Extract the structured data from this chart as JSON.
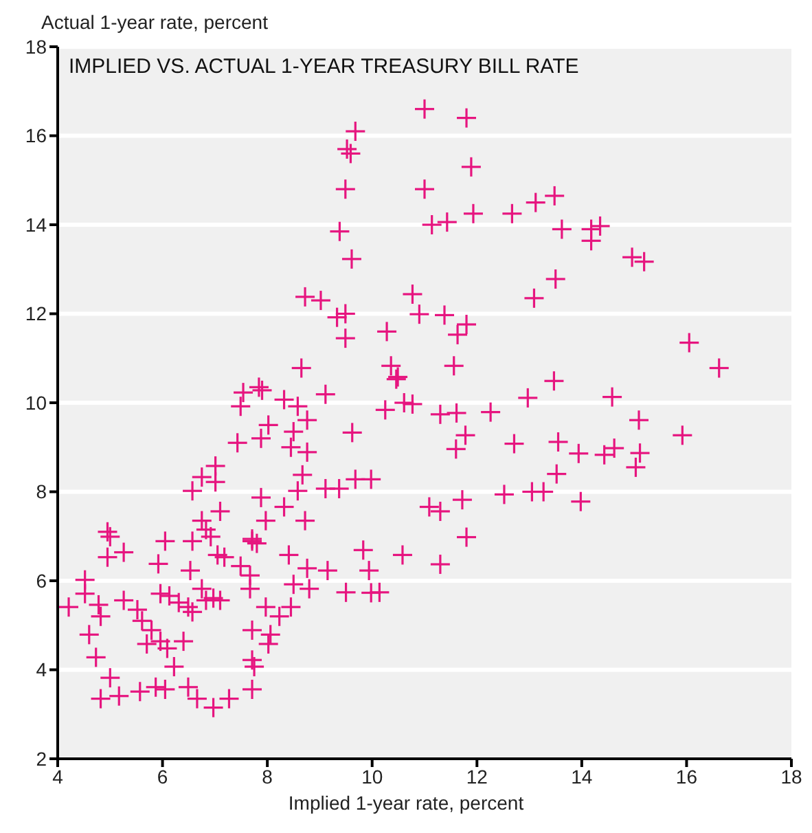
{
  "chart_data": {
    "type": "scatter",
    "title": "IMPLIED VS. ACTUAL 1-YEAR TREASURY BILL RATE",
    "xlabel": "Implied 1-year rate, percent",
    "ylabel": "Actual 1-year rate, percent",
    "xlim": [
      4,
      18
    ],
    "ylim": [
      2,
      18
    ],
    "xticks": [
      4,
      6,
      8,
      10,
      12,
      14,
      16,
      18
    ],
    "yticks": [
      2,
      4,
      6,
      8,
      10,
      12,
      14,
      16,
      18
    ],
    "grid": "y",
    "marker": "cross",
    "series": [
      {
        "color": "#e6157f",
        "x": [
          11.0,
          11.8,
          9.68,
          9.52,
          9.59,
          11.89,
          9.49,
          11.0,
          13.48,
          13.12,
          12.67,
          11.93,
          11.43,
          11.14,
          9.38,
          13.62,
          14.35,
          14.18,
          14.18,
          9.61,
          14.96,
          15.19,
          13.5,
          13.09,
          8.72,
          9.02,
          10.77,
          9.49,
          9.33,
          10.9,
          11.38,
          11.8,
          11.63,
          10.28,
          9.49,
          16.05,
          16.62,
          8.65,
          10.36,
          10.49,
          11.56,
          13.47,
          12.97,
          14.58,
          10.77,
          11.3,
          11.61,
          12.26,
          15.09,
          11.78,
          11.6,
          12.71,
          13.55,
          15.92,
          13.94,
          14.43,
          14.62,
          15.11,
          15.03,
          13.52,
          12.52,
          13.05,
          13.27,
          13.98,
          11.09,
          11.3,
          11.72,
          11.8,
          11.3,
          7.9,
          7.54,
          8.32,
          8.58,
          9.11,
          10.46,
          10.25,
          10.61,
          8.02,
          8.5,
          8.76,
          7.88,
          9.62,
          8.45,
          8.76,
          7.43,
          8.67,
          9.11,
          9.37,
          9.68,
          9.98,
          8.58,
          7.88,
          8.32,
          8.72,
          7.97,
          7.71,
          8.41,
          9.83,
          10.58,
          7.49,
          8.76,
          9.15,
          9.94,
          7.67,
          8.5,
          8.8,
          9.5,
          9.98,
          10.14,
          7.97,
          8.23,
          8.45,
          7.71,
          8.06,
          8.02,
          7.71,
          7.75,
          7.71,
          7.84,
          7.49,
          7.01,
          6.75,
          6.57,
          7.01,
          7.1,
          6.75,
          6.83,
          6.57,
          6.92,
          7.05,
          7.18,
          7.71,
          7.8,
          4.95,
          5.0,
          4.95,
          5.26,
          6.05,
          5.92,
          6.53,
          7.67,
          4.52,
          4.52,
          4.21,
          4.78,
          4.82,
          5.26,
          5.52,
          5.96,
          6.13,
          6.31,
          6.49,
          6.75,
          6.83,
          6.97,
          7.1,
          6.57,
          4.6,
          4.73,
          5.61,
          5.79,
          5.7,
          5.96,
          6.09,
          6.4,
          6.22,
          5.0,
          4.82,
          5.17,
          5.57,
          5.87,
          6.05,
          6.49,
          6.66,
          6.97,
          7.27
        ],
        "values": [
          16.6,
          16.4,
          16.1,
          15.7,
          15.6,
          15.3,
          14.8,
          14.8,
          14.65,
          14.5,
          14.25,
          14.25,
          14.06,
          14.0,
          13.85,
          13.9,
          13.97,
          13.9,
          13.64,
          13.23,
          13.27,
          13.17,
          12.78,
          12.35,
          12.38,
          12.3,
          12.44,
          12.0,
          11.92,
          11.99,
          11.97,
          11.76,
          11.53,
          11.6,
          11.45,
          11.35,
          10.78,
          10.78,
          10.83,
          10.58,
          10.83,
          10.49,
          10.11,
          10.13,
          9.97,
          9.74,
          9.77,
          9.79,
          9.61,
          9.27,
          8.96,
          9.08,
          9.12,
          9.27,
          8.86,
          8.83,
          8.98,
          8.87,
          8.55,
          8.4,
          7.94,
          8.0,
          8.0,
          7.78,
          7.66,
          7.56,
          7.82,
          6.98,
          6.37,
          10.28,
          10.23,
          10.07,
          9.92,
          10.19,
          10.53,
          9.84,
          10.0,
          9.5,
          9.35,
          9.61,
          9.2,
          9.33,
          9.0,
          8.89,
          9.1,
          8.38,
          8.07,
          8.07,
          8.28,
          8.28,
          8.02,
          7.87,
          7.66,
          7.35,
          7.35,
          6.89,
          6.58,
          6.69,
          6.58,
          6.33,
          6.28,
          6.23,
          6.23,
          5.82,
          5.92,
          5.82,
          5.74,
          5.73,
          5.74,
          5.41,
          5.2,
          5.41,
          4.89,
          4.79,
          4.58,
          4.22,
          4.07,
          3.56,
          10.35,
          9.92,
          8.58,
          8.33,
          8.02,
          8.22,
          7.56,
          7.35,
          7.15,
          6.89,
          6.99,
          6.58,
          6.53,
          6.94,
          6.84,
          7.1,
          6.99,
          6.53,
          6.64,
          6.89,
          6.38,
          6.23,
          6.12,
          6.02,
          5.71,
          5.41,
          5.46,
          5.2,
          5.56,
          5.35,
          5.71,
          5.66,
          5.51,
          5.41,
          5.82,
          5.56,
          5.61,
          5.56,
          5.3,
          4.79,
          4.28,
          5.1,
          4.89,
          4.58,
          4.64,
          4.48,
          4.64,
          4.07,
          3.82,
          3.35,
          3.41,
          3.51,
          3.61,
          3.56,
          3.61,
          3.35,
          3.15,
          3.35
        ]
      }
    ]
  }
}
